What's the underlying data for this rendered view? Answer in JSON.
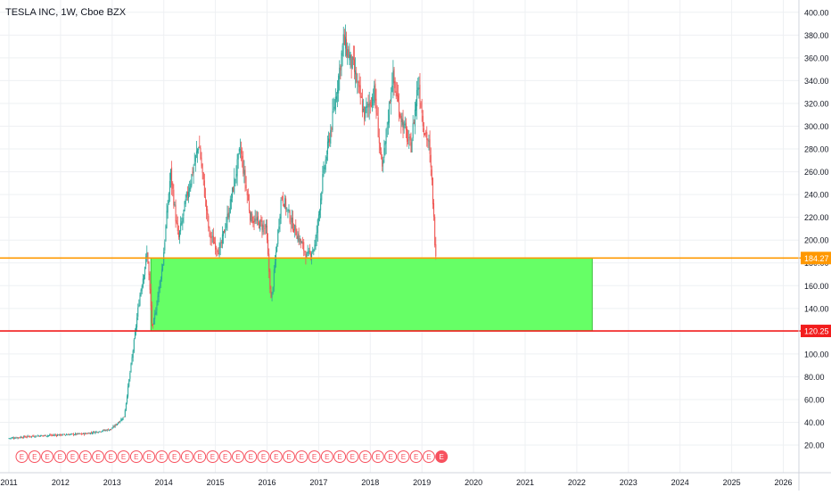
{
  "header": {
    "title": "TESLA INC, 1W, Cboe BZX"
  },
  "chart_data": {
    "type": "candlestick",
    "title": "TESLA INC, 1W, Cboe BZX",
    "x_ticks": [
      "2011",
      "2012",
      "2013",
      "2014",
      "2015",
      "2016",
      "2017",
      "2018",
      "2019",
      "2020",
      "2021",
      "2022",
      "2023",
      "2024",
      "2025",
      "2026"
    ],
    "y_ticks": [
      "20.00",
      "40.00",
      "60.00",
      "80.00",
      "100.00",
      "120.00",
      "140.00",
      "160.00",
      "180.00",
      "200.00",
      "220.00",
      "240.00",
      "260.00",
      "280.00",
      "300.00",
      "320.00",
      "340.00",
      "360.00",
      "380.00",
      "400.00"
    ],
    "ylim": [
      0,
      408
    ],
    "xlim": [
      2011.0,
      2026.6
    ],
    "price_path": [
      [
        2011.0,
        26
      ],
      [
        2011.5,
        28
      ],
      [
        2012.0,
        29
      ],
      [
        2012.5,
        30
      ],
      [
        2013.0,
        34
      ],
      [
        2013.25,
        45
      ],
      [
        2013.4,
        95
      ],
      [
        2013.55,
        150
      ],
      [
        2013.7,
        190
      ],
      [
        2013.8,
        120
      ],
      [
        2014.0,
        180
      ],
      [
        2014.15,
        260
      ],
      [
        2014.3,
        200
      ],
      [
        2014.45,
        235
      ],
      [
        2014.7,
        285
      ],
      [
        2014.9,
        205
      ],
      [
        2015.1,
        190
      ],
      [
        2015.3,
        230
      ],
      [
        2015.5,
        280
      ],
      [
        2015.7,
        220
      ],
      [
        2016.0,
        210
      ],
      [
        2016.1,
        145
      ],
      [
        2016.3,
        240
      ],
      [
        2016.5,
        215
      ],
      [
        2016.8,
        185
      ],
      [
        2016.95,
        195
      ],
      [
        2017.1,
        255
      ],
      [
        2017.3,
        310
      ],
      [
        2017.5,
        375
      ],
      [
        2017.7,
        350
      ],
      [
        2017.9,
        310
      ],
      [
        2018.1,
        330
      ],
      [
        2018.25,
        260
      ],
      [
        2018.45,
        345
      ],
      [
        2018.6,
        310
      ],
      [
        2018.8,
        280
      ],
      [
        2018.95,
        340
      ],
      [
        2019.05,
        300
      ],
      [
        2019.15,
        285
      ],
      [
        2019.22,
        245
      ],
      [
        2019.28,
        190
      ]
    ],
    "zone": {
      "low": 120.25,
      "high": 184.27,
      "x_start": 2013.75,
      "x_end": 2022.3,
      "color": "#66ff66"
    },
    "levels": [
      {
        "value": 184.27,
        "label": "184.27",
        "color": "#ff9800"
      },
      {
        "value": 120.25,
        "label": "120.25",
        "color": "#f21d1d"
      }
    ],
    "events": {
      "label": "E",
      "count": 34,
      "x_start": 2011.25,
      "x_end": 2019.38,
      "outline_color": "#f7525f",
      "highlight_color": "#f7525f",
      "highlight_last": true
    },
    "colors": {
      "up": "#26a69a",
      "down": "#ef5350",
      "grid": "#eef0f3",
      "axis_text": "#131722"
    }
  }
}
